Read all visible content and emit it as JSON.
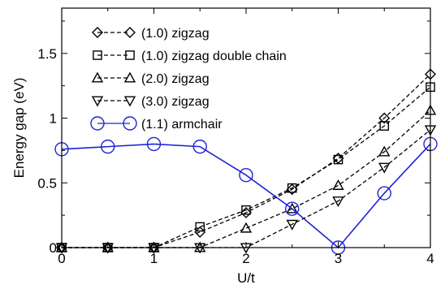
{
  "chart_data": {
    "type": "line",
    "title": "",
    "xlabel": "U/t",
    "ylabel": "Energy gap (eV)",
    "xlim": [
      0,
      4
    ],
    "ylim": [
      0,
      1.85
    ],
    "xticks": [
      0,
      1,
      2,
      3,
      4
    ],
    "xtick_labels": [
      "0",
      "1",
      "2",
      "3",
      "4"
    ],
    "yticks": [
      0,
      0.5,
      1,
      1.5
    ],
    "ytick_labels": [
      "0",
      "0.5",
      "1",
      "1.5"
    ],
    "grid": false,
    "legend_position": "top-left",
    "series": [
      {
        "name": "(1.0) zigzag",
        "marker": "diamond",
        "color": "#000000",
        "line_style": "dashed",
        "x": [
          0,
          0.5,
          1,
          1.5,
          2,
          2.5,
          3,
          3.5,
          4
        ],
        "y": [
          0,
          0,
          0,
          0.12,
          0.27,
          0.45,
          0.69,
          1.0,
          1.34
        ]
      },
      {
        "name": "(1.0) zigzag double chain",
        "marker": "square",
        "color": "#000000",
        "line_style": "dashed",
        "x": [
          0,
          0.5,
          1,
          1.5,
          2,
          2.5,
          3,
          3.5,
          4
        ],
        "y": [
          0,
          0,
          0,
          0.16,
          0.29,
          0.46,
          0.68,
          0.94,
          1.24
        ]
      },
      {
        "name": "(2.0) zigzag",
        "marker": "triangle-up",
        "color": "#000000",
        "line_style": "dashed",
        "x": [
          0,
          0.5,
          1,
          1.5,
          2,
          2.5,
          3,
          3.5,
          4
        ],
        "y": [
          0,
          0,
          0,
          0,
          0.15,
          0.3,
          0.48,
          0.74,
          1.06
        ]
      },
      {
        "name": "(3.0) zigzag",
        "marker": "triangle-down",
        "color": "#000000",
        "line_style": "dashed",
        "x": [
          0,
          0.5,
          1,
          1.5,
          2,
          2.5,
          3,
          3.5,
          4
        ],
        "y": [
          0,
          0,
          0,
          0,
          0,
          0.18,
          0.36,
          0.62,
          0.91
        ]
      },
      {
        "name": "(1.1) armchair",
        "marker": "circle",
        "color": "#1f24d4",
        "line_style": "solid",
        "x": [
          0,
          0.5,
          1,
          1.5,
          2,
          2.5,
          3,
          3.5,
          4
        ],
        "y": [
          0.76,
          0.78,
          0.8,
          0.78,
          0.56,
          0.3,
          0,
          0.42,
          0.8
        ]
      }
    ]
  }
}
